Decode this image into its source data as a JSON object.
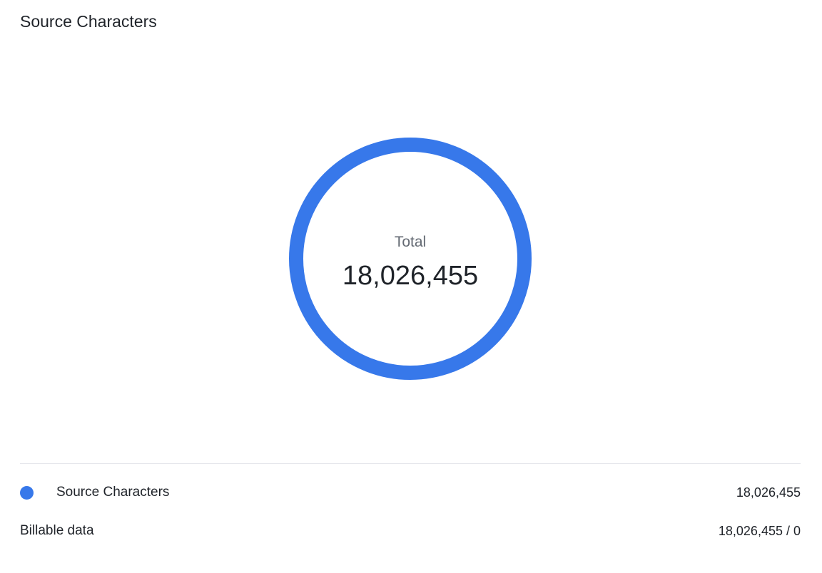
{
  "title": "Source Characters",
  "center": {
    "label": "Total",
    "value": "18,026,455"
  },
  "legend": [
    {
      "label": "Source Characters",
      "value": "18,026,455",
      "color": "#3778ea"
    }
  ],
  "billable": {
    "label": "Billable data",
    "value": "18,026,455 / 0"
  },
  "chart_data": {
    "type": "pie",
    "variant": "donut",
    "categories": [
      "Source Characters"
    ],
    "values": [
      18026455
    ],
    "colors": [
      "#3778ea"
    ],
    "title": "Source Characters",
    "center_text": {
      "label": "Total",
      "value": "18,026,455"
    },
    "legend": "bottom"
  }
}
